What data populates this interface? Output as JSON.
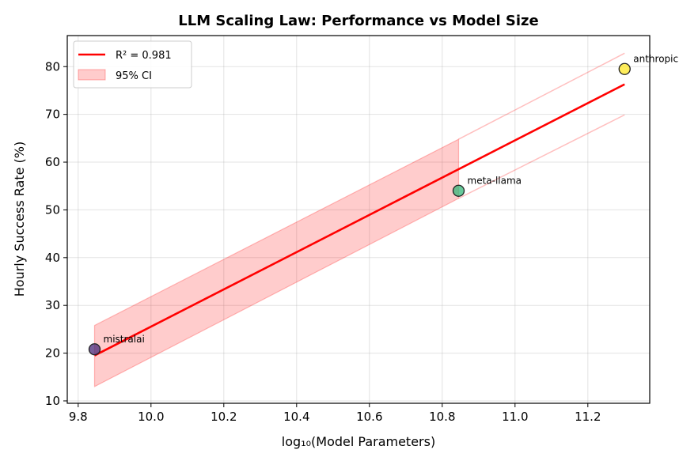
{
  "chart_data": {
    "type": "scatter",
    "title": "LLM Scaling Law: Performance vs Model Size",
    "xlabel": "log₁₀(Model Parameters)",
    "ylabel": "Hourly Success Rate (%)",
    "xlim": [
      9.77,
      11.37
    ],
    "ylim": [
      9.5,
      86.5
    ],
    "xticks": [
      9.8,
      10.0,
      10.2,
      10.4,
      10.6,
      10.8,
      11.0,
      11.2
    ],
    "xtick_labels": [
      "9.8",
      "10.0",
      "10.2",
      "10.4",
      "10.6",
      "10.8",
      "11.0",
      "11.2"
    ],
    "yticks": [
      10,
      20,
      30,
      40,
      50,
      60,
      70,
      80
    ],
    "ytick_labels": [
      "10",
      "20",
      "30",
      "40",
      "50",
      "60",
      "70",
      "80"
    ],
    "grid": true,
    "legend_position": "top-left",
    "points": [
      {
        "label": "mistralai",
        "x": 9.845,
        "y": 20.8,
        "color": "#482878"
      },
      {
        "label": "meta-llama",
        "x": 10.845,
        "y": 54.0,
        "color": "#35b779"
      },
      {
        "label": "anthropic",
        "x": 11.301,
        "y": 79.5,
        "color": "#fde725"
      }
    ],
    "fit_line": {
      "label": "R² = 0.981",
      "color": "#ff0000",
      "x": [
        9.845,
        11.301
      ],
      "y": [
        19.5,
        76.3
      ]
    },
    "confidence_interval": {
      "label": "95% CI",
      "color": "#ff0000",
      "fill_x": [
        9.845,
        10.845
      ],
      "fill_upper": [
        25.8,
        64.8
      ],
      "fill_lower": [
        13.0,
        52.4
      ],
      "ext_x": [
        10.845,
        11.301
      ],
      "ext_upper": [
        64.8,
        82.8
      ],
      "ext_lower": [
        52.4,
        69.9
      ]
    }
  }
}
